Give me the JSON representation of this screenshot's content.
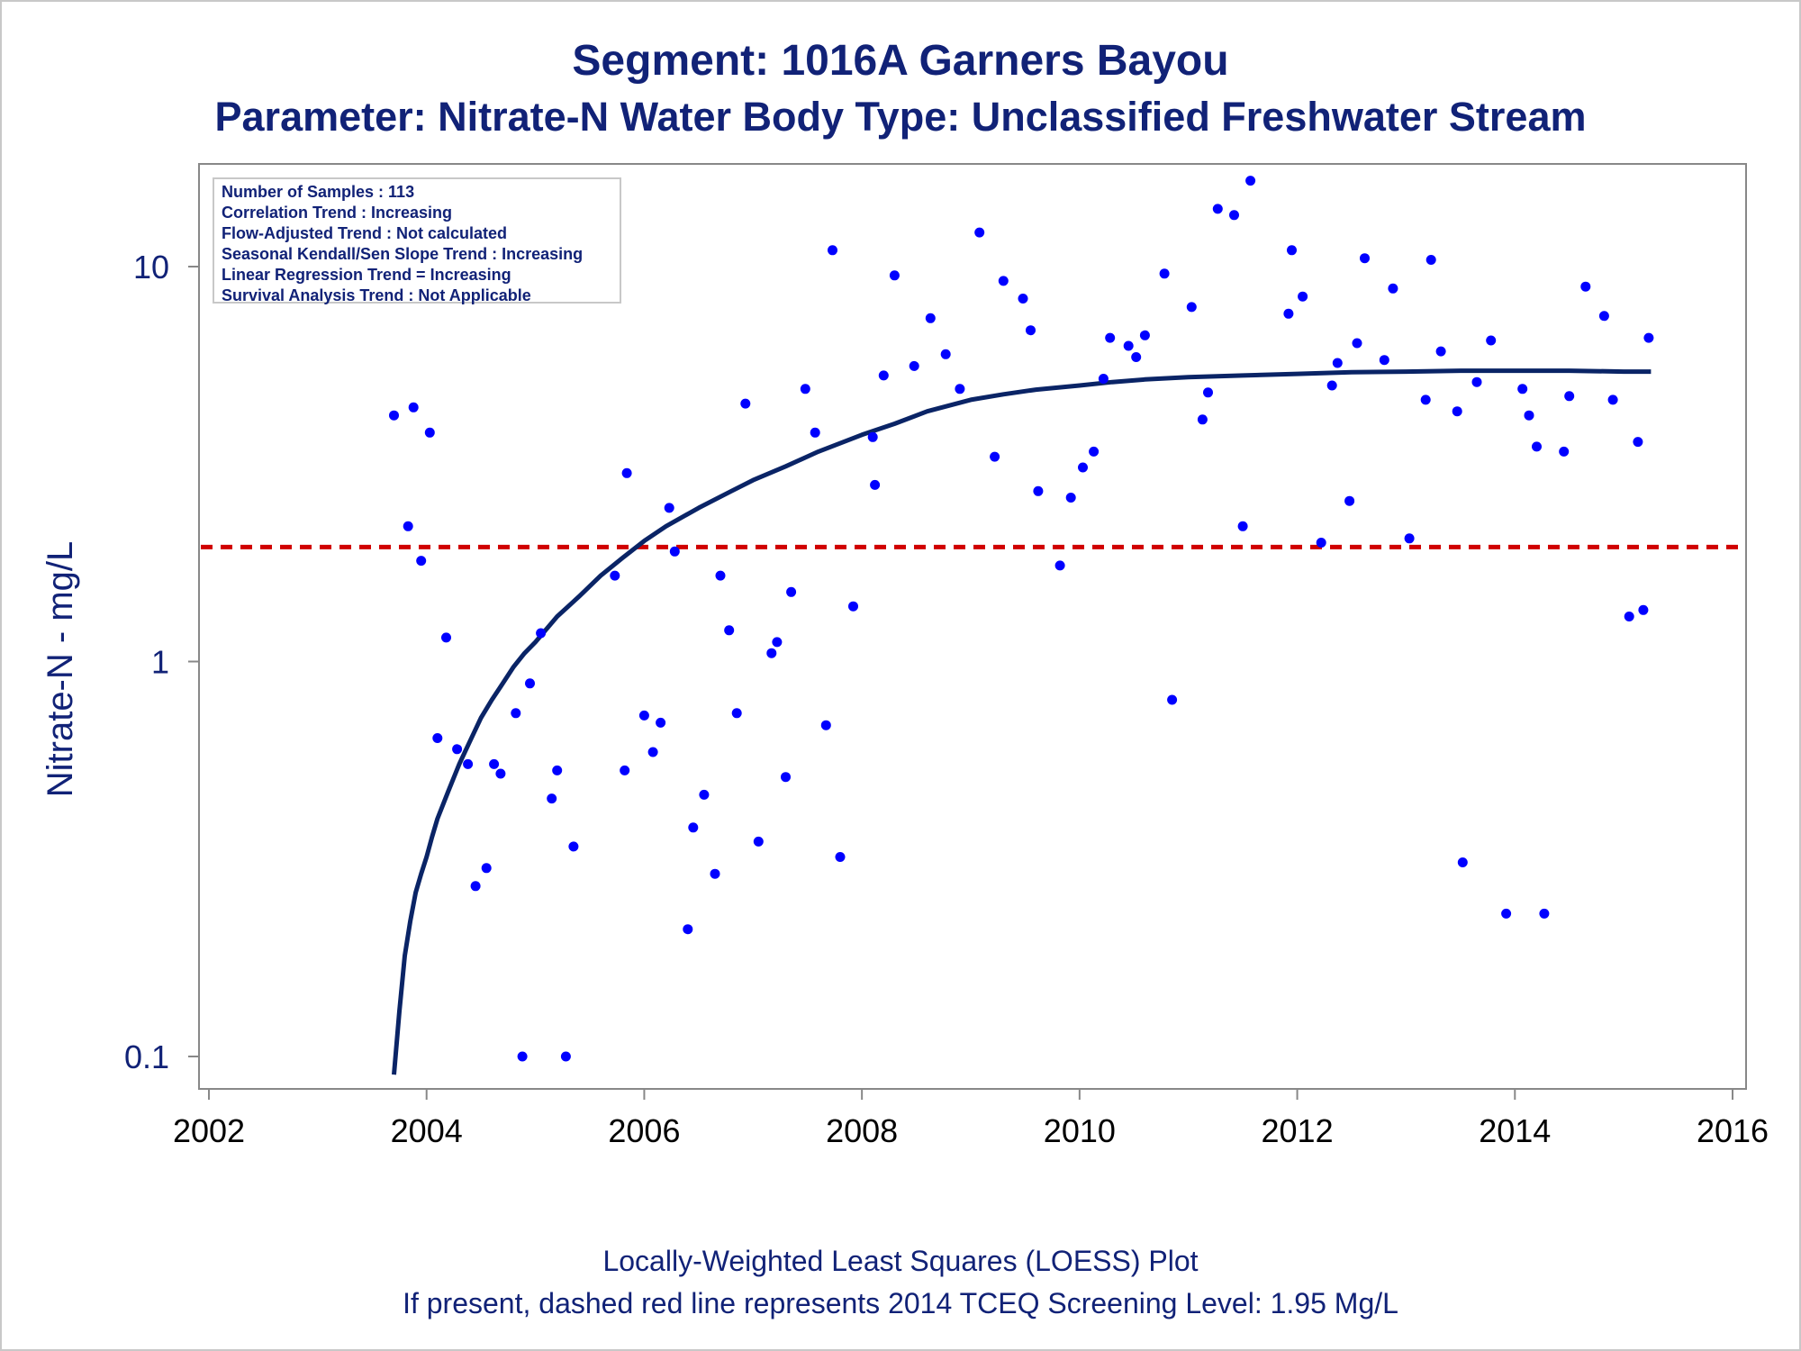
{
  "title": "Segment: 1016A  Garners Bayou",
  "subtitle": "Parameter: Nitrate-N   Water Body Type: Unclassified Freshwater Stream",
  "stats_box": [
    "Number of Samples : 113",
    "Correlation Trend : Increasing",
    "Flow-Adjusted Trend : Not calculated",
    "Seasonal Kendall/Sen Slope Trend : Increasing",
    "Linear Regression Trend = Increasing",
    "Survival Analysis Trend : Not Applicable"
  ],
  "footnote_1": "Locally-Weighted Least Squares (LOESS) Plot",
  "footnote_2": "If present, dashed red line represents 2014 TCEQ Screening Level: 1.95 Mg/L",
  "colors": {
    "points": "#0000ff",
    "loess": "#0a2466",
    "screening": "#d00000",
    "text": "#112277",
    "axis": "#888888"
  },
  "chart_data": {
    "type": "scatter",
    "title": "Segment: 1016A  Garners Bayou",
    "subtitle": "Parameter: Nitrate-N   Water Body Type: Unclassified Freshwater Stream",
    "xlabel": "",
    "ylabel": "Nitrate-N - mg/L",
    "y_scale": "log",
    "xlim": [
      2002,
      2016
    ],
    "ylim": [
      0.08,
      18
    ],
    "x_ticks": [
      2002,
      2004,
      2006,
      2008,
      2010,
      2012,
      2014,
      2016
    ],
    "x_tick_labels": [
      "2002",
      "2004",
      "2006",
      "2008",
      "2010",
      "2012",
      "2014",
      "2016"
    ],
    "y_ticks": [
      0.1,
      1,
      10
    ],
    "y_tick_labels": [
      "0.1",
      "1",
      "10"
    ],
    "grid": false,
    "reference_line": {
      "y": 1.95,
      "style": "dashed"
    },
    "series": [
      {
        "type": "scatter",
        "x": [
          2003.7,
          2003.83,
          2003.88,
          2003.95,
          2004.03,
          2004.1,
          2004.18,
          2004.28,
          2004.38,
          2004.45,
          2004.55,
          2004.62,
          2004.68,
          2004.82,
          2004.88,
          2004.95,
          2005.05,
          2005.15,
          2005.2,
          2005.28,
          2005.35,
          2005.73,
          2005.82,
          2005.84,
          2006.0,
          2006.08,
          2006.15,
          2006.23,
          2006.28,
          2006.4,
          2006.45,
          2006.55,
          2006.65,
          2006.7,
          2006.78,
          2006.85,
          2006.93,
          2007.05,
          2007.17,
          2007.22,
          2007.3,
          2007.35,
          2007.48,
          2007.57,
          2007.67,
          2007.73,
          2007.8,
          2007.92,
          2008.1,
          2008.12,
          2008.2,
          2008.3,
          2008.48,
          2008.63,
          2008.77,
          2008.9,
          2009.08,
          2009.22,
          2009.3,
          2009.48,
          2009.55,
          2009.62,
          2009.82,
          2009.92,
          2010.03,
          2010.13,
          2010.22,
          2010.28,
          2010.45,
          2010.52,
          2010.6,
          2010.78,
          2010.85,
          2011.03,
          2011.13,
          2011.18,
          2011.27,
          2011.42,
          2011.5,
          2011.57,
          2011.92,
          2011.95,
          2012.05,
          2012.22,
          2012.32,
          2012.37,
          2012.48,
          2012.55,
          2012.62,
          2012.8,
          2012.88,
          2013.03,
          2013.18,
          2013.23,
          2013.32,
          2013.47,
          2013.52,
          2013.65,
          2013.78,
          2013.92,
          2014.07,
          2014.13,
          2014.2,
          2014.27,
          2014.45,
          2014.5,
          2014.65,
          2014.82,
          2014.9,
          2015.05,
          2015.13,
          2015.18,
          2015.23
        ],
        "y": [
          4.2,
          2.2,
          4.4,
          1.8,
          3.8,
          0.64,
          1.15,
          0.6,
          0.55,
          0.27,
          0.3,
          0.55,
          0.52,
          0.74,
          0.1,
          0.88,
          1.18,
          0.45,
          0.53,
          0.1,
          0.34,
          1.65,
          0.53,
          3.0,
          0.73,
          0.59,
          0.7,
          2.45,
          1.9,
          0.21,
          0.38,
          0.46,
          0.29,
          1.65,
          1.2,
          0.74,
          4.5,
          0.35,
          1.05,
          1.12,
          0.51,
          1.5,
          4.9,
          3.8,
          0.69,
          11.0,
          0.32,
          1.38,
          3.7,
          2.8,
          5.3,
          9.5,
          5.6,
          7.4,
          6.0,
          4.9,
          12.2,
          3.3,
          9.2,
          8.3,
          6.9,
          2.7,
          1.75,
          2.6,
          3.1,
          3.4,
          5.2,
          6.6,
          6.3,
          5.9,
          6.7,
          9.6,
          0.8,
          7.9,
          4.1,
          4.8,
          14.0,
          13.5,
          2.2,
          16.5,
          7.6,
          11.0,
          8.4,
          2.0,
          5.0,
          5.7,
          2.55,
          6.4,
          10.5,
          5.8,
          8.8,
          2.05,
          4.6,
          10.4,
          6.1,
          4.3,
          0.31,
          5.1,
          6.5,
          0.23,
          4.9,
          4.2,
          3.5,
          0.23,
          3.4,
          4.7,
          8.9,
          7.5,
          4.6,
          1.3,
          3.6,
          1.35,
          6.6
        ]
      },
      {
        "type": "line",
        "x": [
          2003.7,
          2003.75,
          2003.8,
          2003.85,
          2003.9,
          2003.95,
          2004.0,
          2004.05,
          2004.1,
          2004.2,
          2004.3,
          2004.4,
          2004.5,
          2004.6,
          2004.7,
          2004.8,
          2004.9,
          2005.0,
          2005.2,
          2005.4,
          2005.6,
          2005.8,
          2006.0,
          2006.2,
          2006.5,
          2006.8,
          2007.0,
          2007.3,
          2007.6,
          2008.0,
          2008.3,
          2008.6,
          2009.0,
          2009.3,
          2009.6,
          2010.0,
          2010.3,
          2010.6,
          2011.0,
          2011.5,
          2012.0,
          2012.5,
          2013.0,
          2013.5,
          2014.0,
          2014.5,
          2015.0,
          2015.25
        ],
        "y": [
          0.09,
          0.13,
          0.18,
          0.22,
          0.26,
          0.29,
          0.32,
          0.36,
          0.4,
          0.47,
          0.55,
          0.63,
          0.72,
          0.8,
          0.88,
          0.97,
          1.05,
          1.12,
          1.3,
          1.46,
          1.65,
          1.83,
          2.02,
          2.2,
          2.45,
          2.7,
          2.88,
          3.12,
          3.4,
          3.75,
          4.0,
          4.3,
          4.6,
          4.75,
          4.88,
          5.0,
          5.1,
          5.18,
          5.25,
          5.3,
          5.35,
          5.4,
          5.42,
          5.45,
          5.45,
          5.45,
          5.42,
          5.42
        ]
      }
    ]
  }
}
